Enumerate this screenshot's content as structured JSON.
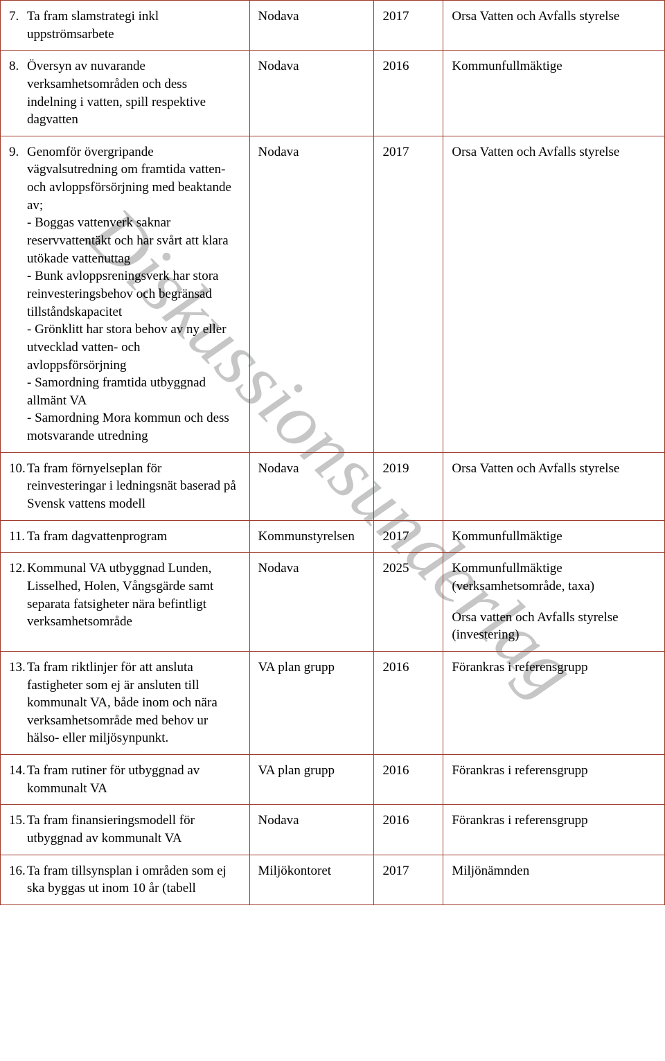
{
  "watermark": "Diskussionsunderlag",
  "rows": [
    {
      "num": "7.",
      "desc": "Ta fram slamstrategi inkl uppströmsarbete",
      "who": "Nodava",
      "year": "2017",
      "decision": "Orsa Vatten och Avfalls styrelse"
    },
    {
      "num": "8.",
      "desc": "Översyn av nuvarande verksamhetsområden och dess indelning i vatten, spill respektive dagvatten",
      "who": "Nodava",
      "year": "2016",
      "decision": "Kommunfullmäktige"
    },
    {
      "num": "9.",
      "desc": "Genomför övergripande vägvalsutredning om framtida vatten- och avloppsförsörjning med beaktande av;\n- Boggas vattenverk saknar reservvattentäkt och har svårt att klara utökade vattenuttag\n- Bunk avloppsreningsverk har stora reinvesteringsbehov och begränsad tillståndskapacitet\n- Grönklitt har stora behov av ny eller utvecklad vatten- och avloppsförsörjning\n- Samordning framtida utbyggnad allmänt VA\n - Samordning Mora kommun och dess motsvarande utredning",
      "who": "Nodava",
      "year": "2017",
      "decision": "Orsa Vatten och Avfalls styrelse"
    },
    {
      "num": "10.",
      "desc": "Ta fram förnyelseplan för reinvesteringar i ledningsnät baserad på Svensk vattens modell",
      "who": "Nodava",
      "year": "2019",
      "decision": "Orsa Vatten och Avfalls styrelse"
    },
    {
      "num": "11.",
      "desc": "Ta fram dagvattenprogram",
      "who": "Kommunstyrelsen",
      "year": "2017",
      "decision": "Kommunfullmäktige"
    },
    {
      "num": "12.",
      "desc": "Kommunal VA utbyggnad Lunden, Lisselhed, Holen, Vångsgärde samt separata fatsigheter nära befintligt verksamhetsområde",
      "who": "Nodava",
      "year": "2025",
      "decision": "Kommunfullmäktige (verksamhetsområde, taxa)",
      "decision_extra": "Orsa vatten och Avfalls styrelse (investering)"
    },
    {
      "num": "13.",
      "desc": "Ta fram riktlinjer för att ansluta fastigheter som ej är ansluten till kommunalt VA, både inom och nära verksamhetsområde med behov ur hälso- eller miljösynpunkt.",
      "who": "VA plan grupp",
      "year": "2016",
      "decision": "Förankras i referensgrupp"
    },
    {
      "num": "14.",
      "desc": "Ta fram rutiner för utbyggnad av kommunalt VA",
      "who": "VA plan grupp",
      "year": "2016",
      "decision": "Förankras i referensgrupp"
    },
    {
      "num": "15.",
      "desc": "Ta fram finansieringsmodell för utbyggnad av kommunalt VA",
      "who": "Nodava",
      "year": "2016",
      "decision": "Förankras i referensgrupp"
    },
    {
      "num": "16.",
      "desc": "Ta fram tillsynsplan i områden som ej ska byggas ut inom 10 år (tabell",
      "who": "Miljökontoret",
      "year": "2017",
      "decision": "Miljönämnden"
    }
  ]
}
